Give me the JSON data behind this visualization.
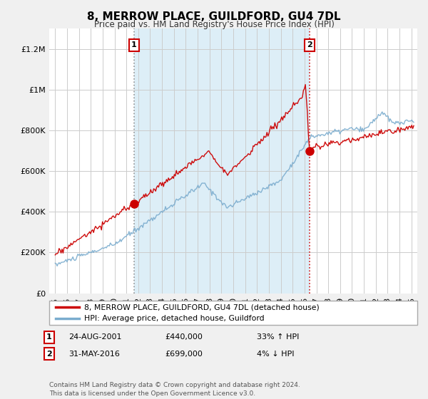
{
  "title": "8, MERROW PLACE, GUILDFORD, GU4 7DL",
  "subtitle": "Price paid vs. HM Land Registry's House Price Index (HPI)",
  "legend_line1": "8, MERROW PLACE, GUILDFORD, GU4 7DL (detached house)",
  "legend_line2": "HPI: Average price, detached house, Guildford",
  "annotation1_label": "1",
  "annotation1_date": "24-AUG-2001",
  "annotation1_price": "£440,000",
  "annotation1_hpi": "33% ↑ HPI",
  "annotation1_year": 2001.65,
  "annotation1_value": 440000,
  "annotation2_label": "2",
  "annotation2_date": "31-MAY-2016",
  "annotation2_price": "£699,000",
  "annotation2_hpi": "4% ↓ HPI",
  "annotation2_year": 2016.42,
  "annotation2_value": 699000,
  "footer": "Contains HM Land Registry data © Crown copyright and database right 2024.\nThis data is licensed under the Open Government Licence v3.0.",
  "ylim": [
    0,
    1300000
  ],
  "xlim_start": 1994.5,
  "xlim_end": 2025.5,
  "red_color": "#cc0000",
  "blue_color": "#7aacce",
  "shade_color": "#ddeef7",
  "background_color": "#f0f0f0",
  "plot_bg_color": "#ffffff",
  "grid_color": "#cccccc"
}
